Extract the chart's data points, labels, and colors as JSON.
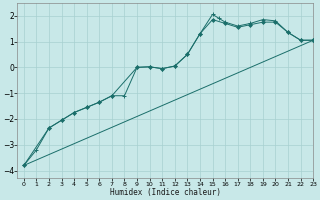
{
  "xlabel": "Humidex (Indice chaleur)",
  "bg_color": "#c8e8e8",
  "grid_color": "#a8d0d0",
  "line_color": "#1a6e6a",
  "xlim": [
    -0.5,
    23
  ],
  "ylim": [
    -4.3,
    2.5
  ],
  "xticks": [
    0,
    1,
    2,
    3,
    4,
    5,
    6,
    7,
    8,
    9,
    10,
    11,
    12,
    13,
    14,
    15,
    16,
    17,
    18,
    19,
    20,
    21,
    22,
    23
  ],
  "yticks": [
    -4,
    -3,
    -2,
    -1,
    0,
    1,
    2
  ],
  "line1_x": [
    0,
    1,
    2,
    3,
    4,
    5,
    6,
    7,
    8,
    9,
    10,
    11,
    12,
    13,
    14,
    15,
    15.5,
    16,
    17,
    18,
    19,
    20,
    21,
    22,
    23
  ],
  "line1_y": [
    -3.8,
    -3.2,
    -2.35,
    -2.05,
    -1.75,
    -1.55,
    -1.35,
    -1.1,
    -1.1,
    0.0,
    0.02,
    -0.05,
    0.05,
    0.5,
    1.3,
    2.05,
    1.9,
    1.75,
    1.6,
    1.7,
    1.85,
    1.8,
    1.35,
    1.05,
    1.05
  ],
  "line2_x": [
    0,
    2,
    3,
    4,
    5,
    6,
    7,
    9,
    10,
    11,
    12,
    13,
    14,
    15,
    16,
    17,
    18,
    19,
    20,
    21,
    22,
    23
  ],
  "line2_y": [
    -3.8,
    -2.35,
    -2.05,
    -1.75,
    -1.55,
    -1.35,
    -1.1,
    0.0,
    0.02,
    -0.05,
    0.05,
    0.5,
    1.3,
    1.85,
    1.7,
    1.55,
    1.65,
    1.75,
    1.75,
    1.35,
    1.05,
    1.05
  ],
  "line3_x": [
    0,
    23
  ],
  "line3_y": [
    -3.8,
    1.05
  ]
}
